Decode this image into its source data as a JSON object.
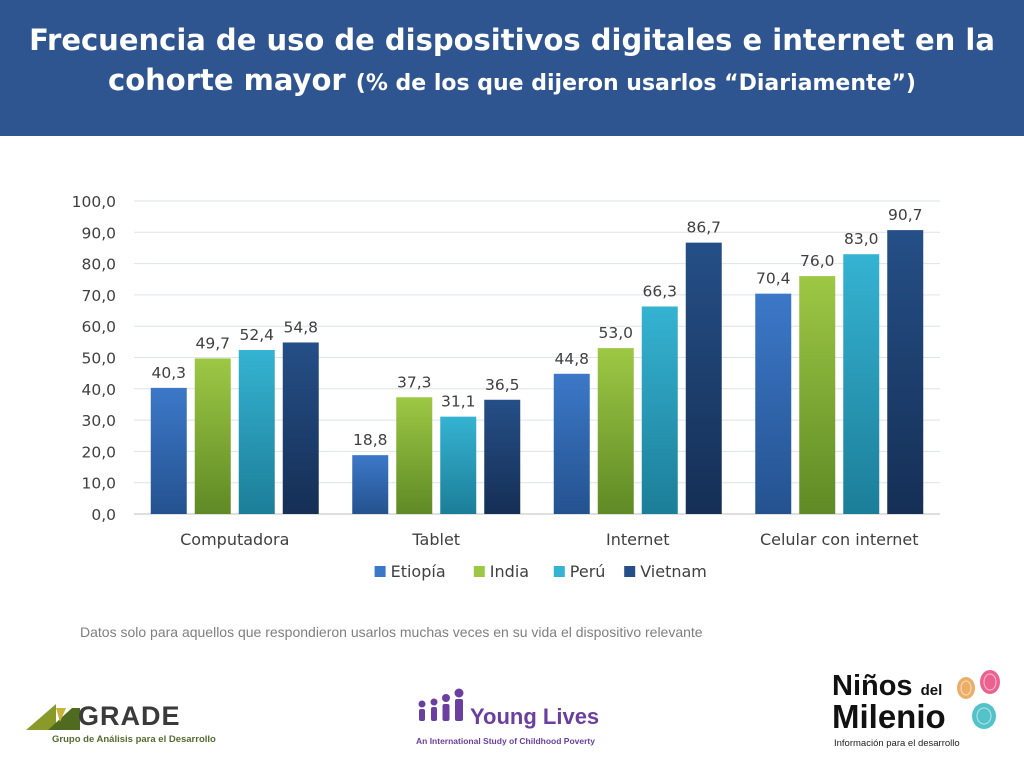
{
  "header": {
    "title_line1": "Frecuencia de uso de dispositivos digitales e internet en la",
    "title_line2_main": "cohorte mayor",
    "title_line2_sub": "(% de los que dijeron usarlos “Diariamente”)"
  },
  "footnote": "Datos solo para aquellos que respondieron usarlos muchas veces en su vida el dispositivo relevante",
  "logos": {
    "grade_name": "GRADE",
    "grade_tagline": "Grupo de Análisis para el Desarrollo",
    "younglives_name": "Young Lives",
    "younglives_tagline": "An International Study of Childhood Poverty",
    "ninos_word1": "Niños",
    "ninos_word2": "del",
    "ninos_word3": "Milenio",
    "ninos_tagline": "Información para el desarrollo"
  },
  "chart_data": {
    "type": "bar",
    "title": "Frecuencia de uso de dispositivos digitales e internet en la cohorte mayor (% de los que dijeron usarlos “Diariamente”)",
    "categories": [
      "Computadora",
      "Tablet",
      "Internet",
      "Celular con internet"
    ],
    "series": [
      {
        "name": "Etiopía",
        "values": [
          40.3,
          18.8,
          44.8,
          70.4
        ],
        "labels": [
          "40,3",
          "18,8",
          "44,8",
          "70,4"
        ],
        "color": "#3c78c8",
        "color_dark": "#24528f"
      },
      {
        "name": "India",
        "values": [
          49.7,
          37.3,
          53.0,
          76.0
        ],
        "labels": [
          "49,7",
          "37,3",
          "53,0",
          "76,0"
        ],
        "color": "#9dc845",
        "color_dark": "#5f8a25"
      },
      {
        "name": "Perú",
        "values": [
          52.4,
          31.1,
          66.3,
          83.0
        ],
        "labels": [
          "52,4",
          "31,1",
          "66,3",
          "83,0"
        ],
        "color": "#35b3d2",
        "color_dark": "#1c7e98"
      },
      {
        "name": "Vietnam",
        "values": [
          54.8,
          36.5,
          86.7,
          90.7
        ],
        "labels": [
          "54,8",
          "36,5",
          "86,7",
          "90,7"
        ],
        "color": "#254f87",
        "color_dark": "#152f55"
      }
    ],
    "y_ticks": [
      "0,0",
      "10,0",
      "20,0",
      "30,0",
      "40,0",
      "50,0",
      "60,0",
      "70,0",
      "80,0",
      "90,0",
      "100,0"
    ],
    "ylim": [
      0,
      100
    ],
    "grid": true,
    "legend": "bottom",
    "xlabel": "",
    "ylabel": ""
  }
}
